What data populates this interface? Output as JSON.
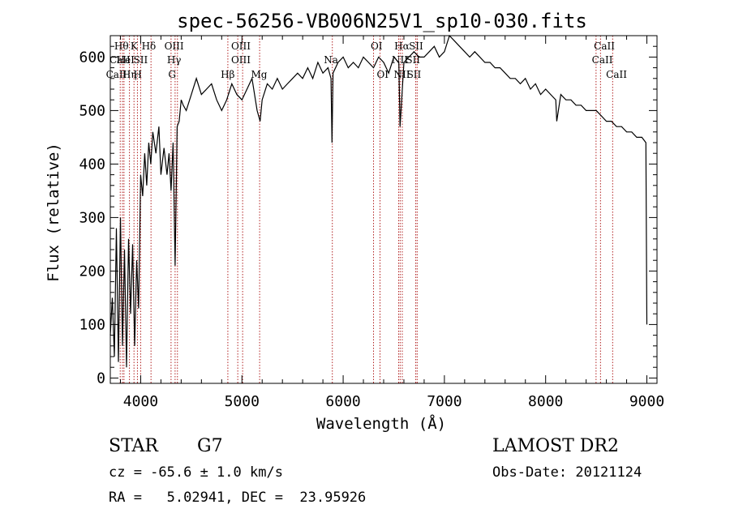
{
  "chart_data": {
    "type": "line",
    "title": "spec-56256-VB006N25V1_sp10-030.fits",
    "xlabel": "Wavelength (Å)",
    "ylabel": "Flux (relative)",
    "xlim": [
      3700,
      9100
    ],
    "ylim": [
      -10,
      640
    ],
    "xticks": [
      4000,
      5000,
      6000,
      7000,
      8000,
      9000
    ],
    "yticks": [
      0,
      100,
      200,
      300,
      400,
      500,
      600
    ],
    "grid": false,
    "line_color": "#000000",
    "marker_color": "#b22222",
    "series": [
      {
        "x": [
          3700,
          3720,
          3740,
          3760,
          3780,
          3800,
          3820,
          3840,
          3860,
          3880,
          3900,
          3920,
          3940,
          3960,
          3980,
          4000,
          4020,
          4040,
          4060,
          4080,
          4100,
          4120,
          4150,
          4180,
          4200,
          4230,
          4260,
          4280,
          4300,
          4320,
          4340,
          4360,
          4380,
          4400,
          4420,
          4450,
          4500,
          4550,
          4600,
          4650,
          4700,
          4750,
          4800,
          4850,
          4900,
          4950,
          5000,
          5050,
          5100,
          5150,
          5180,
          5200,
          5250,
          5300,
          5350,
          5400,
          5450,
          5500,
          5550,
          5600,
          5650,
          5700,
          5750,
          5800,
          5850,
          5880,
          5890,
          5900,
          5950,
          6000,
          6050,
          6100,
          6150,
          6200,
          6250,
          6300,
          6350,
          6400,
          6450,
          6500,
          6550,
          6562,
          6600,
          6650,
          6700,
          6750,
          6800,
          6850,
          6900,
          6950,
          7000,
          7050,
          7100,
          7150,
          7200,
          7250,
          7300,
          7350,
          7400,
          7450,
          7500,
          7550,
          7600,
          7650,
          7700,
          7750,
          7800,
          7850,
          7900,
          7950,
          8000,
          8050,
          8100,
          8110,
          8150,
          8200,
          8250,
          8300,
          8350,
          8400,
          8450,
          8500,
          8550,
          8600,
          8650,
          8700,
          8750,
          8800,
          8850,
          8900,
          8950,
          8990,
          9000
        ],
        "y": [
          80,
          150,
          40,
          280,
          30,
          300,
          60,
          240,
          20,
          260,
          120,
          250,
          60,
          220,
          130,
          380,
          340,
          420,
          360,
          440,
          400,
          460,
          420,
          470,
          380,
          430,
          380,
          420,
          350,
          440,
          210,
          470,
          480,
          520,
          510,
          500,
          530,
          560,
          530,
          540,
          550,
          520,
          500,
          520,
          550,
          530,
          520,
          540,
          560,
          500,
          480,
          520,
          550,
          540,
          560,
          540,
          550,
          560,
          570,
          560,
          580,
          560,
          590,
          570,
          580,
          560,
          440,
          570,
          590,
          600,
          580,
          590,
          580,
          600,
          590,
          580,
          600,
          590,
          570,
          600,
          590,
          470,
          590,
          600,
          610,
          600,
          600,
          610,
          620,
          600,
          610,
          640,
          630,
          620,
          610,
          600,
          610,
          600,
          590,
          590,
          580,
          580,
          570,
          560,
          560,
          550,
          560,
          540,
          550,
          530,
          540,
          530,
          520,
          480,
          530,
          520,
          520,
          510,
          510,
          500,
          500,
          500,
          490,
          480,
          480,
          470,
          470,
          460,
          460,
          450,
          450,
          440,
          100
        ]
      }
    ],
    "line_markers": [
      {
        "name": "Hθ",
        "x": 3798
      },
      {
        "name": "CaII",
        "x": 3820
      },
      {
        "name": "HeI",
        "x": 3835
      },
      {
        "name": "Hη",
        "x": 3889
      },
      {
        "name": "K",
        "x": 3934
      },
      {
        "name": "H",
        "x": 3968
      },
      {
        "name": "SII",
        "x": 4000
      },
      {
        "name": "Hδ",
        "x": 4102
      },
      {
        "name": "OIII",
        "x": 4300
      },
      {
        "name": "Hγ",
        "x": 4340
      },
      {
        "name": "G",
        "x": 4363
      },
      {
        "name": "Hβ",
        "x": 4861
      },
      {
        "name": "OIII",
        "x": 4959
      },
      {
        "name": "OIII",
        "x": 5007
      },
      {
        "name": "Mg",
        "x": 5175
      },
      {
        "name": "Na",
        "x": 5893
      },
      {
        "name": "OI",
        "x": 6300
      },
      {
        "name": "OI",
        "x": 6364
      },
      {
        "name": "NII",
        "x": 6548
      },
      {
        "name": "Hα",
        "x": 6563
      },
      {
        "name": "NII",
        "x": 6584
      },
      {
        "name": "SII",
        "x": 6717
      },
      {
        "name": "SII",
        "x": 6731
      },
      {
        "name": "CaII",
        "x": 8498
      },
      {
        "name": "CaII",
        "x": 8542
      },
      {
        "name": "CaII",
        "x": 8662
      }
    ],
    "marker_labels": [
      {
        "text": "Hθ",
        "x": 3810,
        "row": 0
      },
      {
        "text": "CaII",
        "x": 3795,
        "row": 1
      },
      {
        "text": "HeI",
        "x": 3850,
        "row": 1
      },
      {
        "text": "CaII",
        "x": 3760,
        "row": 2
      },
      {
        "text": "Hη",
        "x": 3890,
        "row": 2
      },
      {
        "text": "K",
        "x": 3935,
        "row": 0
      },
      {
        "text": "SII",
        "x": 4000,
        "row": 1
      },
      {
        "text": "H",
        "x": 3970,
        "row": 2
      },
      {
        "text": "Hδ",
        "x": 4080,
        "row": 0
      },
      {
        "text": "OIII",
        "x": 4330,
        "row": 0
      },
      {
        "text": "Hγ",
        "x": 4330,
        "row": 1
      },
      {
        "text": "G",
        "x": 4310,
        "row": 2
      },
      {
        "text": "Hβ",
        "x": 4860,
        "row": 2
      },
      {
        "text": "OIII",
        "x": 4990,
        "row": 0
      },
      {
        "text": "OIII",
        "x": 4990,
        "row": 1
      },
      {
        "text": "Mg",
        "x": 5170,
        "row": 2
      },
      {
        "text": "Na",
        "x": 5880,
        "row": 1
      },
      {
        "text": "OI",
        "x": 6330,
        "row": 0
      },
      {
        "text": "OI",
        "x": 6390,
        "row": 2
      },
      {
        "text": "Hα",
        "x": 6580,
        "row": 0
      },
      {
        "text": "SII",
        "x": 6720,
        "row": 0
      },
      {
        "text": "NII",
        "x": 6560,
        "row": 1
      },
      {
        "text": "SII",
        "x": 6690,
        "row": 1
      },
      {
        "text": "NII",
        "x": 6580,
        "row": 2
      },
      {
        "text": "SII",
        "x": 6700,
        "row": 2
      },
      {
        "text": "CaII",
        "x": 8580,
        "row": 0
      },
      {
        "text": "CaII",
        "x": 8560,
        "row": 1
      },
      {
        "text": "CaII",
        "x": 8700,
        "row": 2
      }
    ]
  },
  "info": {
    "object_type": "STAR",
    "subclass": "G7",
    "redshift_text": "cz = -65.6 ± 1.0 km/s",
    "coords_text": "RA =   5.02941, DEC =  23.95926",
    "survey": "LAMOST DR2",
    "obs_date": "Obs-Date: 20121124"
  }
}
